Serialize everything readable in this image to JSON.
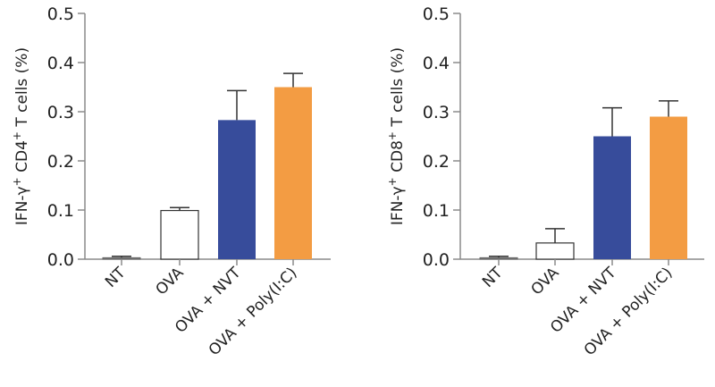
{
  "chart_data": [
    {
      "type": "bar",
      "ylabel": "IFN-γ+ CD4+ T cells (%)",
      "ylabel_parts": {
        "a": "IFN-γ",
        "sup1": "+",
        "b": " CD4",
        "sup2": "+",
        "c": " T cells (%)"
      },
      "categories": [
        "NT",
        "OVA",
        "OVA + NVT",
        "OVA + Poly(I:C)"
      ],
      "values": [
        0.003,
        0.099,
        0.283,
        0.35
      ],
      "error_upper": [
        0.006,
        0.105,
        0.343,
        0.378
      ],
      "colors": [
        "#7a7a7a",
        "#ffffff",
        "#374c9b",
        "#f39c43"
      ],
      "ylim": [
        0,
        0.5
      ],
      "yticks": [
        "0.0",
        "0.1",
        "0.2",
        "0.3",
        "0.4",
        "0.5"
      ],
      "grid": false
    },
    {
      "type": "bar",
      "ylabel": "IFN-γ+ CD8+ T cells (%)",
      "ylabel_parts": {
        "a": "IFN-γ",
        "sup1": "+",
        "b": " CD8",
        "sup2": "+",
        "c": " T cells (%)"
      },
      "categories": [
        "NT",
        "OVA",
        "OVA + NVT",
        "OVA + Poly(I:C)"
      ],
      "values": [
        0.003,
        0.033,
        0.25,
        0.29
      ],
      "error_upper": [
        0.006,
        0.062,
        0.308,
        0.322
      ],
      "colors": [
        "#7a7a7a",
        "#ffffff",
        "#374c9b",
        "#f39c43"
      ],
      "ylim": [
        0,
        0.5
      ],
      "yticks": [
        "0.0",
        "0.1",
        "0.2",
        "0.3",
        "0.4",
        "0.5"
      ],
      "grid": false
    }
  ]
}
